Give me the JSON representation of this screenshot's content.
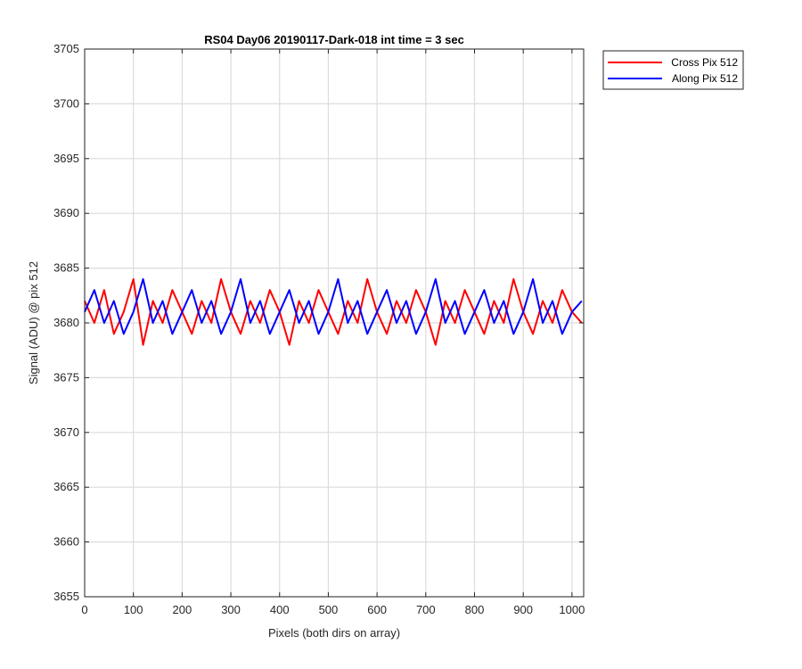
{
  "chart_data": {
    "type": "line",
    "title": "RS04 Day06 20190117-Dark-018 int time = 3 sec",
    "xlabel": "Pixels (both dirs on array)",
    "ylabel": "Signal (ADU) @ pix 512",
    "xlim": [
      0,
      1024
    ],
    "ylim": [
      3655,
      3705
    ],
    "xticks": [
      "0",
      "100",
      "200",
      "300",
      "400",
      "500",
      "600",
      "700",
      "800",
      "900",
      "1000"
    ],
    "yticks": [
      "3655",
      "3660",
      "3665",
      "3670",
      "3675",
      "3680",
      "3685",
      "3690",
      "3695",
      "3700",
      "3705"
    ],
    "grid": true,
    "legend_position": "outside-top-right",
    "series": [
      {
        "name": "Cross Pix 512",
        "color": "#ff0000",
        "x": [
          0,
          20,
          40,
          60,
          80,
          100,
          120,
          140,
          160,
          180,
          200,
          220,
          240,
          260,
          280,
          300,
          320,
          340,
          360,
          380,
          400,
          420,
          440,
          460,
          480,
          500,
          520,
          540,
          560,
          580,
          600,
          620,
          640,
          660,
          680,
          700,
          720,
          740,
          760,
          780,
          800,
          820,
          840,
          860,
          880,
          900,
          920,
          940,
          960,
          980,
          1000,
          1020
        ],
        "y": [
          3682,
          3680,
          3683,
          3679,
          3681,
          3684,
          3678,
          3682,
          3680,
          3683,
          3681,
          3679,
          3682,
          3680,
          3684,
          3681,
          3679,
          3682,
          3680,
          3683,
          3681,
          3678,
          3682,
          3680,
          3683,
          3681,
          3679,
          3682,
          3680,
          3684,
          3681,
          3679,
          3682,
          3680,
          3683,
          3681,
          3678,
          3682,
          3680,
          3683,
          3681,
          3679,
          3682,
          3680,
          3684,
          3681,
          3679,
          3682,
          3680,
          3683,
          3681,
          3680
        ]
      },
      {
        "name": "Along Pix 512",
        "color": "#0000ff",
        "x": [
          0,
          20,
          40,
          60,
          80,
          100,
          120,
          140,
          160,
          180,
          200,
          220,
          240,
          260,
          280,
          300,
          320,
          340,
          360,
          380,
          400,
          420,
          440,
          460,
          480,
          500,
          520,
          540,
          560,
          580,
          600,
          620,
          640,
          660,
          680,
          700,
          720,
          740,
          760,
          780,
          800,
          820,
          840,
          860,
          880,
          900,
          920,
          940,
          960,
          980,
          1000,
          1020
        ],
        "y": [
          3681,
          3683,
          3680,
          3682,
          3679,
          3681,
          3684,
          3680,
          3682,
          3679,
          3681,
          3683,
          3680,
          3682,
          3679,
          3681,
          3684,
          3680,
          3682,
          3679,
          3681,
          3683,
          3680,
          3682,
          3679,
          3681,
          3684,
          3680,
          3682,
          3679,
          3681,
          3683,
          3680,
          3682,
          3679,
          3681,
          3684,
          3680,
          3682,
          3679,
          3681,
          3683,
          3680,
          3682,
          3679,
          3681,
          3684,
          3680,
          3682,
          3679,
          3681,
          3682
        ]
      }
    ]
  }
}
